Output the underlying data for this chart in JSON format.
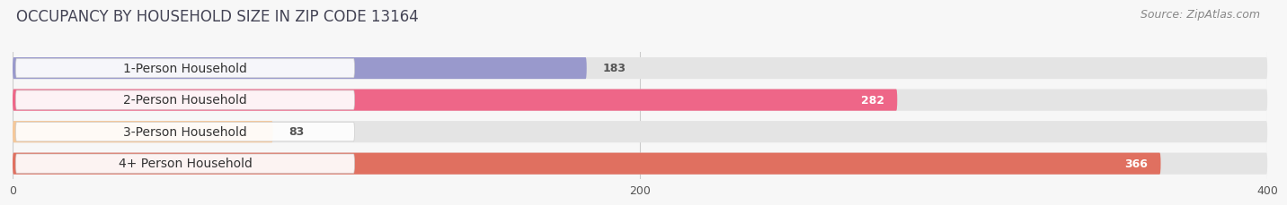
{
  "title": "OCCUPANCY BY HOUSEHOLD SIZE IN ZIP CODE 13164",
  "source": "Source: ZipAtlas.com",
  "categories": [
    "1-Person Household",
    "2-Person Household",
    "3-Person Household",
    "4+ Person Household"
  ],
  "values": [
    183,
    282,
    83,
    366
  ],
  "bar_colors": [
    "#9999cc",
    "#ee6688",
    "#f5c89a",
    "#e07060"
  ],
  "bar_bg_color": "#e4e4e4",
  "xlim": [
    0,
    400
  ],
  "xticks": [
    0,
    200,
    400
  ],
  "label_text_color": "#333333",
  "value_colors_inside": [
    "#555555",
    "#ffffff",
    "#555555",
    "#ffffff"
  ],
  "figsize": [
    14.06,
    2.33
  ],
  "dpi": 100,
  "bg_color": "#f7f7f7",
  "title_fontsize": 12,
  "source_fontsize": 9,
  "bar_label_fontsize": 9,
  "category_fontsize": 10,
  "bar_height": 0.68,
  "bar_gap": 0.18
}
